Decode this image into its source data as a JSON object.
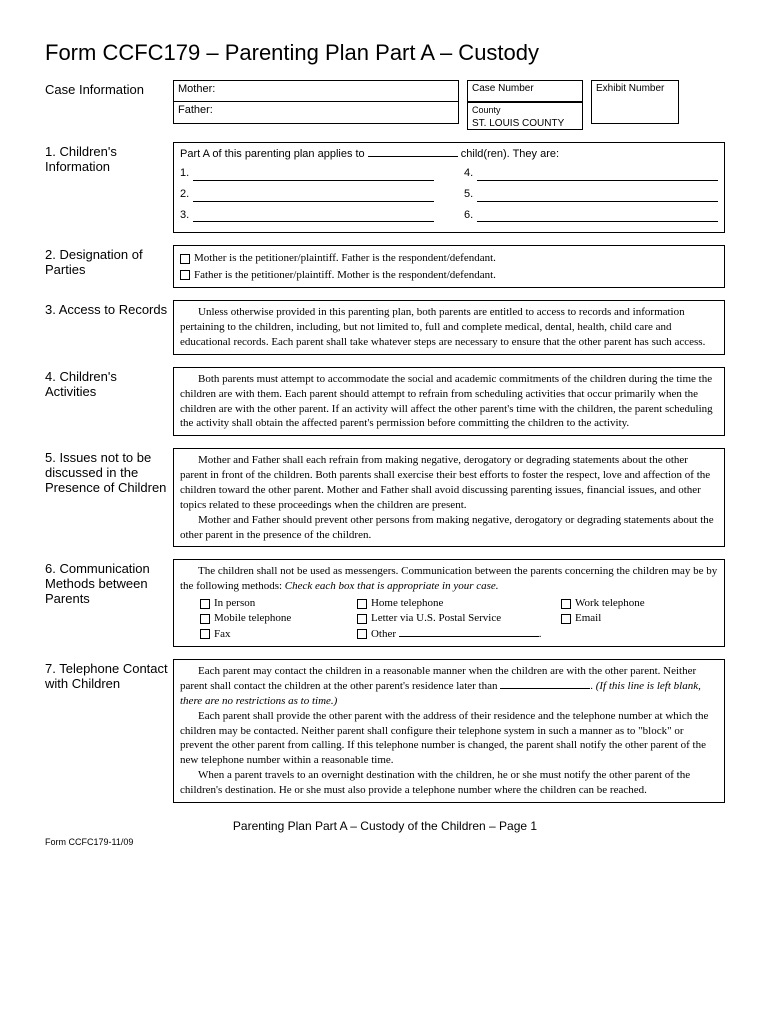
{
  "title": "Form CCFC179 – Parenting Plan Part A – Custody",
  "caseInfo": {
    "label": "Case Information",
    "mother": "Mother:",
    "father": "Father:",
    "caseNumber": "Case Number",
    "exhibitNumber": "Exhibit Number",
    "countyLabel": "County",
    "countyValue": "ST. LOUIS COUNTY"
  },
  "s1": {
    "label": "1. Children's Information",
    "intro1": "Part A of this parenting plan applies to ",
    "intro2": " child(ren).  They are:",
    "n1": "1.",
    "n2": "2.",
    "n3": "3.",
    "n4": "4.",
    "n5": "5.",
    "n6": "6."
  },
  "s2": {
    "label": "2. Designation of Parties",
    "opt1": "Mother is the petitioner/plaintiff.  Father is the respondent/defendant.",
    "opt2": "Father is the petitioner/plaintiff.  Mother is the respondent/defendant."
  },
  "s3": {
    "label": "3. Access to Records",
    "text": "Unless otherwise provided in this parenting plan, both parents are entitled to access to records and information pertaining to the children, including, but not limited to, full and complete medical, dental, health, child care and educational records.  Each parent shall take whatever steps are necessary to ensure that the other parent has such access."
  },
  "s4": {
    "label": "4. Children's Activities",
    "text": "Both parents must attempt to accommodate the social and academic commitments of the children during the time the children are with them.  Each parent should attempt to refrain from scheduling activities that occur primarily when the children are with the other parent.  If an activity will affect the other parent's time with the children, the parent scheduling the activity shall obtain the affected parent's permission before committing the children to the activity."
  },
  "s5": {
    "label": "5. Issues not to be discussed in the Presence of Children",
    "p1": "Mother and Father shall each refrain from making negative, derogatory or degrading statements about the other parent in front of the children.  Both parents shall exercise their best efforts to foster the respect, love and affection of the children toward the other parent.  Mother and Father shall avoid discussing parenting issues, financial issues, and other topics related to these proceedings when the children are present.",
    "p2": "Mother and Father should prevent other persons from making negative, derogatory or degrading statements about the other parent in the presence of the children."
  },
  "s6": {
    "label": "6. Communication Methods between Parents",
    "intro1": "The children shall not be used as messengers.  Communication between the parents concerning the children may be by the following methods:  ",
    "intro2": "Check each box that is appropriate in your case.",
    "m1": "In person",
    "m2": "Home telephone",
    "m3": "Work telephone",
    "m4": "Mobile telephone",
    "m5": "Letter via U.S. Postal Service",
    "m6": "Email",
    "m7": "Fax",
    "m8": "Other "
  },
  "s7": {
    "label": "7. Telephone Contact with Children",
    "p1a": "Each parent may contact the children in a reasonable manner when the children are with the other parent.  Neither parent shall contact the children at the other parent's residence later than ",
    "p1b": ".   ",
    "p1c": "(If this line is left blank, there are no restrictions as to time.)",
    "p2": "Each parent shall provide the other parent with the address of their residence and the telephone number at which the children may be contacted.  Neither parent shall configure their telephone system in such a manner as to \"block\" or prevent the other parent from calling.  If this telephone number is changed, the parent shall notify the other parent of the new telephone number within a reasonable time.",
    "p3": "When a parent travels to an overnight destination with the children, he or she must notify the other parent of the children's destination.  He or she must also provide a telephone number where the children can be reached."
  },
  "footer": "Parenting Plan Part A – Custody of the Children – Page 1",
  "formCode": "Form CCFC179-11/09"
}
